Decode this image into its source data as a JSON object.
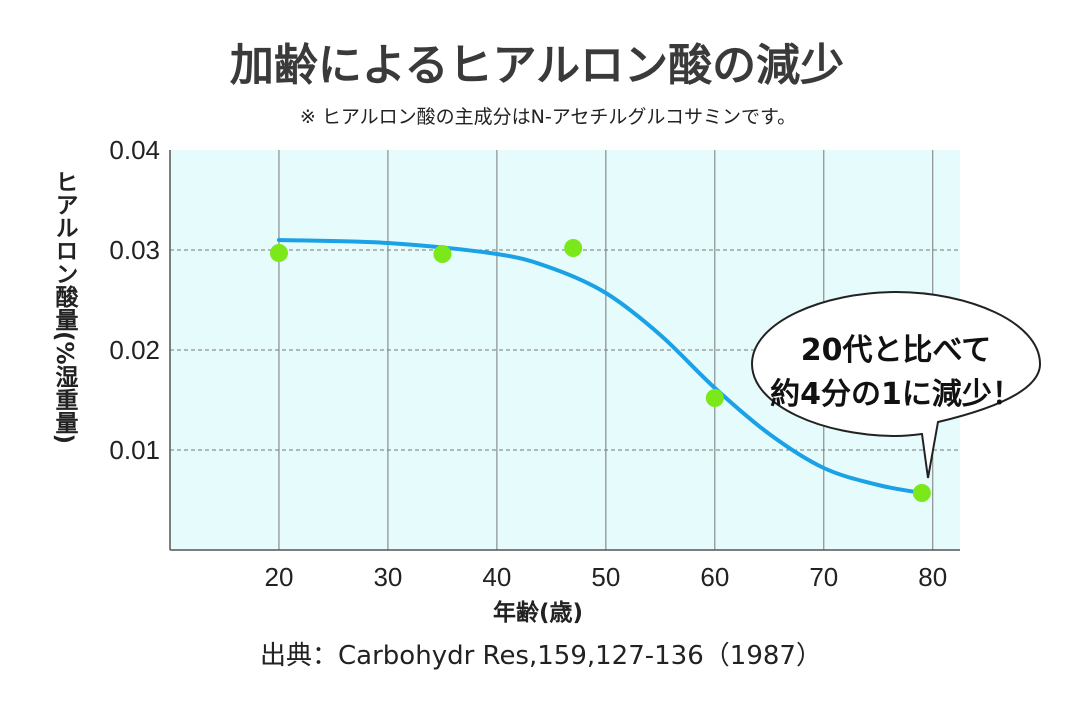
{
  "chart_data": {
    "type": "scatter",
    "title": "加齢によるヒアルロン酸の減少",
    "note": "※ ヒアルロン酸の主成分はN-アセチルグルコサミンです。",
    "xlabel": "年齢(歳)",
    "ylabel": "ヒアルロン酸量(%湿重量)",
    "xlim": [
      10,
      82.5
    ],
    "ylim": [
      0,
      0.04
    ],
    "x_ticks": [
      "20",
      "30",
      "40",
      "50",
      "60",
      "70",
      "80"
    ],
    "y_ticks": [
      "0.04",
      "0.03",
      "0.02",
      "0.01"
    ],
    "series": [
      {
        "type": "scatter",
        "x": [
          20,
          35,
          47,
          60,
          79
        ],
        "y": [
          0.0297,
          0.0296,
          0.0302,
          0.0152,
          0.0057
        ]
      },
      {
        "type": "line",
        "x": [
          20,
          30,
          40,
          45,
          50,
          55,
          60,
          65,
          70,
          75,
          79
        ],
        "y": [
          0.031,
          0.0307,
          0.0296,
          0.0282,
          0.0257,
          0.0215,
          0.0162,
          0.0116,
          0.0082,
          0.0065,
          0.0057
        ]
      }
    ],
    "grid": true,
    "callout": [
      "20代と比べて",
      "約4分の1に減少！"
    ],
    "source": "出典：Carbohydr Res,159,127-136（1987）",
    "colors": {
      "background": "#e6fbfc",
      "grid": "#777777",
      "curve": "#1aa1e6",
      "points": "#7be81a"
    }
  }
}
